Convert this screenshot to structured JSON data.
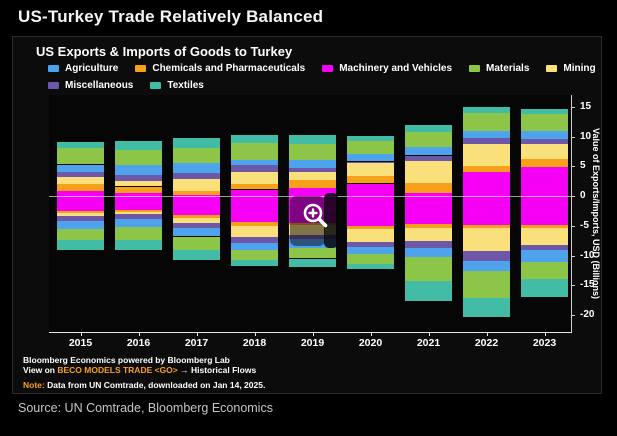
{
  "page": {
    "title": "US-Turkey Trade Relatively Balanced",
    "source_line": "Source: UN Comtrade, Bloomberg Economics"
  },
  "chart": {
    "title": "US Exports & Imports of Goods to Turkey",
    "y_axis_title": "Value of Exports/Imports, USD (Billions)",
    "footer": {
      "line1": "Bloomberg Economics powered by Bloomberg Lab",
      "line2_prefix": "View on ",
      "line2_link": "BECO MODELS TRADE <GO>",
      "line2_suffix": " → Historical Flows",
      "note_label": "Note:",
      "note_text": " Data from UN Comtrade, downloaded on Jan 14, 2025."
    }
  },
  "chart_data": {
    "type": "bar",
    "variant": "diverging-stacked",
    "title": "US Exports & Imports of Goods to Turkey",
    "xlabel": "",
    "ylabel": "Value of Exports/Imports, USD (Billions)",
    "ylim": [
      -22,
      17
    ],
    "yticks": [
      15,
      10,
      5,
      0,
      -5,
      -10,
      -15,
      -20
    ],
    "grid": "zero-line-only",
    "legend_position": "top",
    "categories": [
      "2015",
      "2016",
      "2017",
      "2018",
      "2019",
      "2020",
      "2021",
      "2022",
      "2023"
    ],
    "legend": [
      {
        "label": "Agriculture",
        "color": "#4da4ec"
      },
      {
        "label": "Chemicals and Pharmaceuticals",
        "color": "#f7a11a"
      },
      {
        "label": "Machinery and Vehicles",
        "color": "#f500f5"
      },
      {
        "label": "Materials",
        "color": "#8dc548"
      },
      {
        "label": "Mining",
        "color": "#fae07a"
      },
      {
        "label": "Miscellaneous",
        "color": "#6c57a8"
      },
      {
        "label": "Textiles",
        "color": "#42bca4"
      }
    ],
    "legend_row_break": 5,
    "stack_order_from_zero": [
      "Machinery and Vehicles",
      "Chemicals and Pharmaceuticals",
      "Mining",
      "Miscellaneous",
      "Agriculture",
      "Materials",
      "Textiles"
    ],
    "series": [
      {
        "name": "Machinery and Vehicles",
        "exports": [
          0.9,
          0.6,
          0.1,
          1.1,
          1.4,
          2.1,
          0.5,
          4.0,
          4.8
        ],
        "imports": [
          2.5,
          2.4,
          3.2,
          4.4,
          4.5,
          5.0,
          4.7,
          4.9,
          4.8
        ]
      },
      {
        "name": "Chemicals and Pharmaceuticals",
        "exports": [
          1.2,
          1.0,
          0.8,
          0.9,
          1.3,
          1.3,
          1.7,
          1.1,
          1.4
        ],
        "imports": [
          0.4,
          0.3,
          0.5,
          0.7,
          0.4,
          0.6,
          0.6,
          0.5,
          0.5
        ]
      },
      {
        "name": "Mining",
        "exports": [
          1.1,
          0.9,
          1.9,
          2.1,
          1.4,
          2.3,
          3.7,
          3.6,
          2.5
        ],
        "imports": [
          0.5,
          0.3,
          0.8,
          1.8,
          1.6,
          2.1,
          2.3,
          3.8,
          2.9
        ]
      },
      {
        "name": "Miscellaneous",
        "exports": [
          0.9,
          1.0,
          1.0,
          1.1,
          0.6,
          0.1,
          0.9,
          1.0,
          0.9
        ],
        "imports": [
          0.8,
          0.8,
          0.9,
          1.0,
          0.8,
          0.9,
          1.1,
          1.7,
          0.9
        ]
      },
      {
        "name": "Agriculture",
        "exports": [
          1.2,
          1.7,
          1.7,
          0.9,
          1.3,
          1.2,
          1.4,
          1.3,
          1.4
        ],
        "imports": [
          1.3,
          1.4,
          1.4,
          1.2,
          1.4,
          1.2,
          1.5,
          1.7,
          2.0
        ]
      },
      {
        "name": "Materials",
        "exports": [
          2.7,
          2.5,
          2.6,
          2.8,
          2.8,
          2.2,
          2.6,
          2.9,
          2.8
        ],
        "imports": [
          1.9,
          2.2,
          2.2,
          1.7,
          1.8,
          1.6,
          4.1,
          4.5,
          2.8
        ]
      },
      {
        "name": "Textiles",
        "exports": [
          1.1,
          1.5,
          1.6,
          1.3,
          1.4,
          0.9,
          1.1,
          1.0,
          0.9
        ],
        "imports": [
          1.7,
          1.7,
          1.7,
          1.0,
          1.4,
          0.9,
          3.4,
          3.3,
          3.1
        ]
      }
    ],
    "totals": {
      "exports": [
        9.1,
        9.2,
        9.7,
        10.2,
        10.2,
        10.1,
        11.9,
        14.9,
        14.7
      ],
      "imports": [
        -9.1,
        -9.1,
        -10.7,
        -11.8,
        -11.9,
        -12.3,
        -17.7,
        -20.4,
        -17.0
      ]
    }
  }
}
